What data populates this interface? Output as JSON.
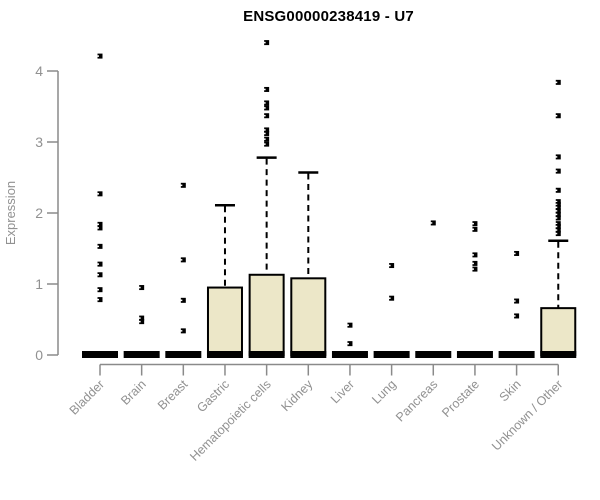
{
  "page": {
    "background": "#ffffff"
  },
  "chart_data": {
    "type": "box",
    "title": "ENSG00000238419 - U7",
    "ylabel": "Expression",
    "xlabel": "",
    "ylim": [
      0,
      4.5
    ],
    "yticks": [
      0,
      1,
      2,
      3,
      4
    ],
    "grid": false,
    "legend": false,
    "colors": {
      "box_fill": "#ece7c8",
      "box_border": "#000000",
      "median": "#000000",
      "whisker": "#000000",
      "outlier": "#000000",
      "axis": "#8a8a8a",
      "tick_label": "#919191",
      "title": "#000000"
    },
    "categories": [
      "Bladder",
      "Brain",
      "Breast",
      "Gastric",
      "Hematopoietic cells",
      "Kidney",
      "Liver",
      "Lung",
      "Pancreas",
      "Prostate",
      "Skin",
      "Unknown / Other"
    ],
    "series": [
      {
        "label": "Bladder",
        "box_low": 0,
        "box_high": 0,
        "median": 0,
        "whisker_low": 0,
        "whisker_high": 0,
        "outliers": [
          4.21,
          2.27,
          1.84,
          1.79,
          1.53,
          1.28,
          1.13,
          0.92,
          0.78
        ]
      },
      {
        "label": "Brain",
        "box_low": 0,
        "box_high": 0,
        "median": 0,
        "whisker_low": 0,
        "whisker_high": 0,
        "outliers": [
          0.95,
          0.52,
          0.47
        ]
      },
      {
        "label": "Breast",
        "box_low": 0,
        "box_high": 0,
        "median": 0,
        "whisker_low": 0,
        "whisker_high": 0,
        "outliers": [
          2.39,
          1.34,
          0.77,
          0.34
        ]
      },
      {
        "label": "Gastric",
        "box_low": 0,
        "box_high": 0.95,
        "median": 0,
        "whisker_low": 0,
        "whisker_high": 2.11,
        "outliers": []
      },
      {
        "label": "Hematopoietic cells",
        "box_low": 0,
        "box_high": 1.13,
        "median": 0,
        "whisker_low": 0,
        "whisker_high": 2.78,
        "outliers": [
          4.4,
          3.74,
          3.55,
          3.48,
          3.37,
          3.17,
          3.12,
          3.04,
          2.97
        ]
      },
      {
        "label": "Kidney",
        "box_low": 0,
        "box_high": 1.08,
        "median": 0,
        "whisker_low": 0,
        "whisker_high": 2.57,
        "outliers": []
      },
      {
        "label": "Liver",
        "box_low": 0,
        "box_high": 0,
        "median": 0,
        "whisker_low": 0,
        "whisker_high": 0,
        "outliers": [
          0.42,
          0.16
        ]
      },
      {
        "label": "Lung",
        "box_low": 0,
        "box_high": 0,
        "median": 0,
        "whisker_low": 0,
        "whisker_high": 0,
        "outliers": [
          1.26,
          0.8
        ]
      },
      {
        "label": "Pancreas",
        "box_low": 0,
        "box_high": 0,
        "median": 0,
        "whisker_low": 0,
        "whisker_high": 0,
        "outliers": [
          1.86
        ]
      },
      {
        "label": "Prostate",
        "box_low": 0,
        "box_high": 0,
        "median": 0,
        "whisker_low": 0,
        "whisker_high": 0,
        "outliers": [
          1.85,
          1.77,
          1.41,
          1.29,
          1.21
        ]
      },
      {
        "label": "Skin",
        "box_low": 0,
        "box_high": 0,
        "median": 0,
        "whisker_low": 0,
        "whisker_high": 0,
        "outliers": [
          1.43,
          0.76,
          0.55
        ]
      },
      {
        "label": "Unknown / Other",
        "box_low": 0,
        "box_high": 0.66,
        "median": 0,
        "whisker_low": 0,
        "whisker_high": 1.61,
        "outliers": [
          3.84,
          3.37,
          2.79,
          2.59,
          2.32,
          2.16,
          2.12,
          2.08,
          2.03,
          1.98,
          1.93,
          1.85,
          1.81,
          1.76,
          1.71
        ]
      }
    ]
  }
}
